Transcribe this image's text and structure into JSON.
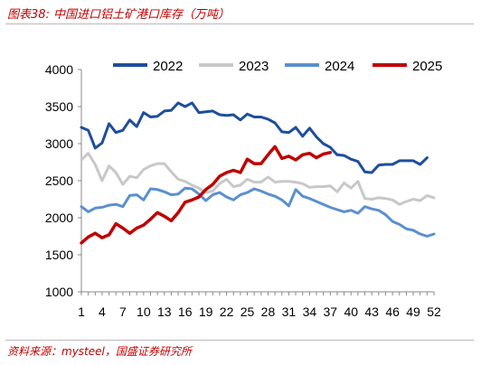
{
  "figure": {
    "title": "图表38:  中国进口铝土矿港口库存（万吨）",
    "source": "资料来源：mysteel，国盛证券研究所"
  },
  "chart_data": {
    "type": "line",
    "title": "",
    "xlabel": "",
    "ylabel": "",
    "x": [
      1,
      2,
      3,
      4,
      5,
      6,
      7,
      8,
      9,
      10,
      11,
      12,
      13,
      14,
      15,
      16,
      17,
      18,
      19,
      20,
      21,
      22,
      23,
      24,
      25,
      26,
      27,
      28,
      29,
      30,
      31,
      32,
      33,
      34,
      35,
      36,
      37,
      38,
      39,
      40,
      41,
      42,
      43,
      44,
      45,
      46,
      47,
      48,
      49,
      50,
      51,
      52
    ],
    "xticks": [
      1,
      4,
      7,
      10,
      13,
      16,
      19,
      22,
      25,
      28,
      31,
      34,
      37,
      40,
      43,
      46,
      49,
      52
    ],
    "xlim": [
      1,
      52
    ],
    "ylim": [
      1000,
      4000
    ],
    "yticks": [
      1000,
      1500,
      2000,
      2500,
      3000,
      3500,
      4000
    ],
    "grid": false,
    "legend_position": "top",
    "series": [
      {
        "name": "2022",
        "color": "#1f4e9c",
        "values": [
          3220,
          3180,
          2940,
          3010,
          3270,
          3150,
          3180,
          3320,
          3230,
          3420,
          3360,
          3370,
          3440,
          3450,
          3550,
          3500,
          3550,
          3420,
          3430,
          3440,
          3390,
          3380,
          3390,
          3320,
          3400,
          3360,
          3360,
          3330,
          3280,
          3160,
          3150,
          3220,
          3100,
          3210,
          3090,
          3000,
          2950,
          2850,
          2840,
          2790,
          2760,
          2620,
          2610,
          2710,
          2720,
          2720,
          2770,
          2770,
          2770,
          2720,
          2810,
          null
        ]
      },
      {
        "name": "2023",
        "color": "#c8c8c8",
        "values": [
          2780,
          2870,
          2720,
          2500,
          2700,
          2610,
          2450,
          2560,
          2540,
          2650,
          2700,
          2730,
          2730,
          2620,
          2520,
          2490,
          2440,
          2400,
          2340,
          2360,
          2460,
          2520,
          2420,
          2440,
          2520,
          2480,
          2480,
          2550,
          2480,
          2490,
          2490,
          2480,
          2460,
          2410,
          2420,
          2420,
          2430,
          2350,
          2470,
          2400,
          2490,
          2260,
          2250,
          2270,
          2260,
          2240,
          2180,
          2220,
          2250,
          2230,
          2300,
          2270
        ]
      },
      {
        "name": "2024",
        "color": "#5b8fd0",
        "values": [
          2150,
          2080,
          2130,
          2140,
          2170,
          2180,
          2150,
          2300,
          2310,
          2240,
          2390,
          2380,
          2350,
          2310,
          2320,
          2400,
          2390,
          2320,
          2230,
          2310,
          2340,
          2280,
          2240,
          2310,
          2340,
          2390,
          2360,
          2320,
          2290,
          2240,
          2160,
          2380,
          2290,
          2260,
          2220,
          2180,
          2140,
          2110,
          2080,
          2100,
          2060,
          2150,
          2120,
          2100,
          2040,
          1950,
          1910,
          1850,
          1830,
          1780,
          1750,
          1780
        ]
      },
      {
        "name": "2025",
        "color": "#c00000",
        "values": [
          1660,
          1740,
          1790,
          1730,
          1770,
          1920,
          1860,
          1790,
          1860,
          1900,
          1980,
          2070,
          2020,
          1960,
          2070,
          2210,
          2240,
          2280,
          2380,
          2450,
          2560,
          2610,
          2640,
          2610,
          2790,
          2730,
          2730,
          2850,
          2960,
          2800,
          2830,
          2780,
          2850,
          2870,
          2810,
          2860,
          2880,
          null,
          null,
          null,
          null,
          null,
          null,
          null,
          null,
          null,
          null,
          null,
          null,
          null,
          null,
          null
        ]
      }
    ]
  }
}
